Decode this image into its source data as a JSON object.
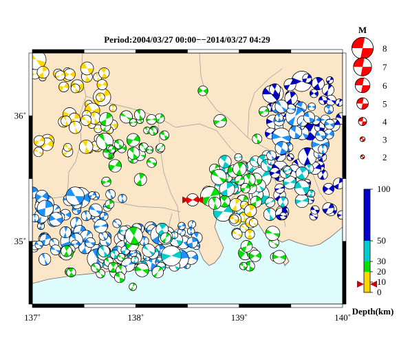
{
  "map": {
    "title": "Period:2004/03/27 00:00−−2014/03/27 04:29",
    "lon_range": [
      137,
      140
    ],
    "lat_range": [
      34.5,
      36.5
    ],
    "x_ticks": [
      {
        "lon": 137,
        "label": "137˚"
      },
      {
        "lon": 138,
        "label": "138˚"
      },
      {
        "lon": 139,
        "label": "139˚"
      },
      {
        "lon": 140,
        "label": "140˚"
      }
    ],
    "y_ticks": [
      {
        "lat": 35,
        "label": "35˚"
      },
      {
        "lat": 36,
        "label": "36˚"
      }
    ],
    "colors": {
      "land": "#fbe6c8",
      "sea": "#e0fdfd",
      "coast": "#666666",
      "prefecture_border": "#999999",
      "mech_fill": "#ff0000"
    },
    "main_event_marker": {
      "lon": 138.55,
      "lat": 35.33,
      "icon": "red-double-triangle-marker"
    }
  },
  "magnitude_legend": {
    "title": "M",
    "items": [
      {
        "m": 8,
        "label": "8"
      },
      {
        "m": 7,
        "label": "7"
      },
      {
        "m": 6,
        "label": "6"
      },
      {
        "m": 5,
        "label": "5"
      },
      {
        "m": 4,
        "label": "4"
      },
      {
        "m": 3,
        "label": "3"
      },
      {
        "m": 2,
        "label": "2"
      }
    ]
  },
  "depth_legend": {
    "title": "Depth(km)",
    "stops": [
      {
        "depth": 0,
        "color": "#ffd700"
      },
      {
        "depth": 10,
        "color": "#ffd700"
      },
      {
        "depth": 20,
        "color": "#00e000"
      },
      {
        "depth": 30,
        "color": "#00cccc"
      },
      {
        "depth": 50,
        "color": "#1e90ff"
      },
      {
        "depth": 100,
        "color": "#0000cc"
      }
    ],
    "tick_labels": [
      {
        "depth": 100,
        "label": "100"
      },
      {
        "depth": 50,
        "label": "50"
      },
      {
        "depth": 30,
        "label": "30"
      },
      {
        "depth": 20,
        "label": "20"
      },
      {
        "depth": 10,
        "label": "10"
      },
      {
        "depth": 0,
        "label": "0"
      }
    ],
    "marker_depth": 10
  },
  "events": {
    "groups": [
      {
        "name": "yellow-north",
        "color": "#ffd700",
        "lon": [
          137.3,
          137.8
        ],
        "lat": [
          35.7,
          36.4
        ],
        "count": 36
      },
      {
        "name": "yellow-nw",
        "color": "#ffd700",
        "lon": [
          137.0,
          137.3
        ],
        "lat": [
          36.3,
          36.5
        ],
        "count": 6
      },
      {
        "name": "green-north",
        "color": "#00e000",
        "lon": [
          137.7,
          138.3
        ],
        "lat": [
          35.6,
          36.0
        ],
        "count": 28
      },
      {
        "name": "yellow-green-west",
        "color": "#ffd700",
        "lon": [
          137.05,
          137.15
        ],
        "lat": [
          35.6,
          35.85
        ],
        "count": 4
      },
      {
        "name": "blue-west",
        "color": "#1e90ff",
        "lon": [
          137.0,
          137.9
        ],
        "lat": [
          34.85,
          35.4
        ],
        "count": 70
      },
      {
        "name": "blue-central",
        "color": "#1e90ff",
        "lon": [
          137.9,
          138.6
        ],
        "lat": [
          34.8,
          35.15
        ],
        "count": 42
      },
      {
        "name": "cyan-south",
        "color": "#00cccc",
        "lon": [
          137.6,
          138.4
        ],
        "lat": [
          34.75,
          35.1
        ],
        "count": 22
      },
      {
        "name": "green-south",
        "color": "#00e000",
        "lon": [
          137.2,
          138.3
        ],
        "lat": [
          34.7,
          35.05
        ],
        "count": 16
      },
      {
        "name": "cyan-fuji",
        "color": "#00cccc",
        "lon": [
          138.8,
          139.3
        ],
        "lat": [
          35.2,
          35.7
        ],
        "count": 34
      },
      {
        "name": "green-fuji",
        "color": "#00e000",
        "lon": [
          138.7,
          139.2
        ],
        "lat": [
          35.3,
          35.6
        ],
        "count": 18
      },
      {
        "name": "yellow-hakone",
        "color": "#ffd700",
        "lon": [
          138.95,
          139.15
        ],
        "lat": [
          35.05,
          35.3
        ],
        "count": 12
      },
      {
        "name": "navy-east",
        "color": "#0000cc",
        "lon": [
          139.3,
          140.0
        ],
        "lat": [
          35.2,
          36.3
        ],
        "count": 60
      },
      {
        "name": "blue-east",
        "color": "#1e90ff",
        "lon": [
          139.3,
          139.9
        ],
        "lat": [
          35.6,
          36.1
        ],
        "count": 30
      },
      {
        "name": "cyan-east",
        "color": "#00cccc",
        "lon": [
          139.4,
          139.8
        ],
        "lat": [
          35.3,
          35.6
        ],
        "count": 12
      },
      {
        "name": "green-izu",
        "color": "#00e000",
        "lon": [
          139.05,
          139.4
        ],
        "lat": [
          34.8,
          35.1
        ],
        "count": 10
      },
      {
        "name": "green-misc",
        "color": "#00e000",
        "lon": [
          137.7,
          139.5
        ],
        "lat": [
          34.55,
          36.2
        ],
        "count": 14
      }
    ]
  }
}
